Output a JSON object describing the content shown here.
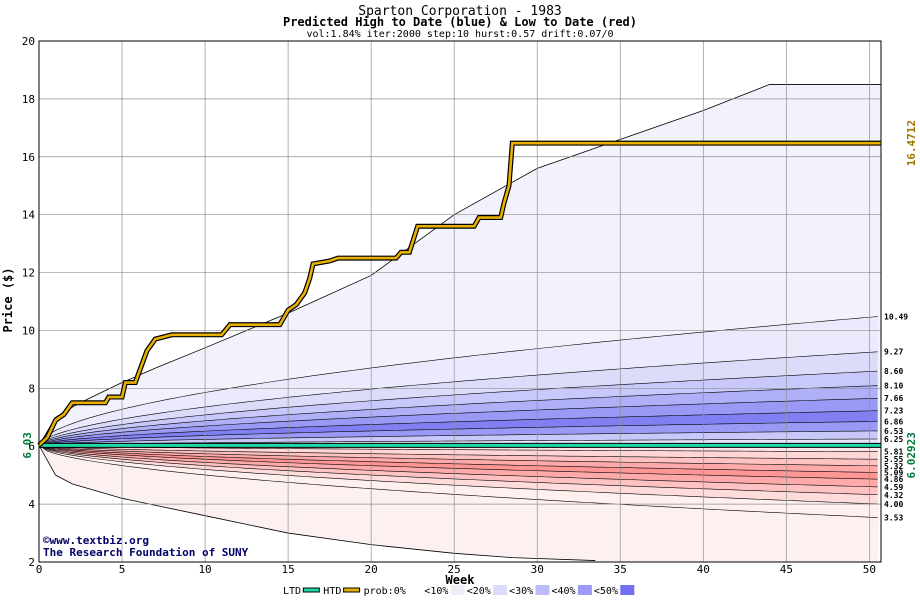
{
  "chart_data": {
    "type": "area",
    "title": "Sparton Corporation - 1983",
    "subtitle": "Predicted High to Date (blue) &  Low to Date (red)",
    "params": "vol:1.84% iter:2000 step:10 hurst:0.57 drift:0.07/0",
    "xlabel": "Week",
    "ylabel": "Price ($)",
    "xlim": [
      0,
      50.7
    ],
    "ylim": [
      2,
      20
    ],
    "xticks": [
      0,
      5,
      10,
      15,
      20,
      25,
      30,
      35,
      40,
      45,
      50
    ],
    "yticks": [
      2,
      4,
      6,
      8,
      10,
      12,
      14,
      16,
      18,
      20
    ],
    "grid": true,
    "start_price": 6.03,
    "start_label": "6.03",
    "current_low_label": "6.02923",
    "current_high_label": "16.4712",
    "band_end_values": [
      10.49,
      9.27,
      8.6,
      8.1,
      7.66,
      7.23,
      6.86,
      6.53,
      6.25,
      5.81,
      5.55,
      5.32,
      5.09,
      4.86,
      4.59,
      4.32,
      4.0,
      3.53
    ],
    "band_end_labels": [
      "10.49",
      "9.27",
      "8.60",
      "8.10",
      "7.66",
      "7.23",
      "6.86",
      "6.53",
      "6.25",
      "5.81",
      "5.55",
      "5.32",
      "5.09",
      "4.86",
      "4.59",
      "4.32",
      "4.00",
      "3.53"
    ],
    "envelope_max": [
      [
        0,
        6.03
      ],
      [
        1,
        7.0
      ],
      [
        2,
        7.35
      ],
      [
        3,
        7.65
      ],
      [
        5,
        8.2
      ],
      [
        7,
        8.7
      ],
      [
        10,
        9.4
      ],
      [
        15,
        10.6
      ],
      [
        20,
        11.9
      ],
      [
        25,
        14.0
      ],
      [
        30,
        15.6
      ],
      [
        35,
        16.6
      ],
      [
        40,
        17.6
      ],
      [
        44,
        18.5
      ],
      [
        50.7,
        18.5
      ]
    ],
    "envelope_min": [
      [
        0,
        6.03
      ],
      [
        1,
        5.0
      ],
      [
        2,
        4.7
      ],
      [
        5,
        4.2
      ],
      [
        10,
        3.6
      ],
      [
        15,
        3.0
      ],
      [
        20,
        2.6
      ],
      [
        25,
        2.3
      ],
      [
        28.5,
        2.15
      ],
      [
        33.5,
        2.05
      ]
    ],
    "high_to_date": [
      [
        0,
        6.03
      ],
      [
        0.5,
        6.3
      ],
      [
        1,
        6.9
      ],
      [
        1.5,
        7.1
      ],
      [
        2,
        7.5
      ],
      [
        4,
        7.5
      ],
      [
        4.2,
        7.7
      ],
      [
        5,
        7.7
      ],
      [
        5.2,
        8.2
      ],
      [
        5.8,
        8.2
      ],
      [
        6.5,
        9.3
      ],
      [
        7,
        9.7
      ],
      [
        8,
        9.85
      ],
      [
        11,
        9.85
      ],
      [
        11.5,
        10.2
      ],
      [
        14.5,
        10.2
      ],
      [
        15,
        10.7
      ],
      [
        15.5,
        10.9
      ],
      [
        16,
        11.3
      ],
      [
        16.3,
        11.8
      ],
      [
        16.5,
        12.3
      ],
      [
        17.5,
        12.4
      ],
      [
        18,
        12.5
      ],
      [
        21.5,
        12.5
      ],
      [
        21.8,
        12.7
      ],
      [
        22.3,
        12.7
      ],
      [
        22.8,
        13.6
      ],
      [
        26.2,
        13.6
      ],
      [
        26.5,
        13.9
      ],
      [
        27.8,
        13.9
      ],
      [
        28,
        14.4
      ],
      [
        28.3,
        15.0
      ],
      [
        28.5,
        16.47
      ],
      [
        50.7,
        16.47
      ]
    ],
    "low_to_date": [
      [
        0,
        6.03
      ],
      [
        50.7,
        6.03
      ]
    ],
    "legend": [
      {
        "label": "LTD",
        "color": "#20d8a8"
      },
      {
        "label": "HTD",
        "color": "#e8b000"
      },
      {
        "label": "prob:0%",
        "color": "#ffffff"
      },
      {
        "label": "<10%",
        "color": "#eeeef8"
      },
      {
        "label": "<20%",
        "color": "#dcdcf8"
      },
      {
        "label": "<30%",
        "color": "#bcbcf8"
      },
      {
        "label": "<40%",
        "color": "#9c9cf8"
      },
      {
        "label": "<50%",
        "color": "#7070f0"
      }
    ],
    "credit_site": "www.textbiz.org",
    "credit_org": "The Research Foundation of SUNY"
  }
}
